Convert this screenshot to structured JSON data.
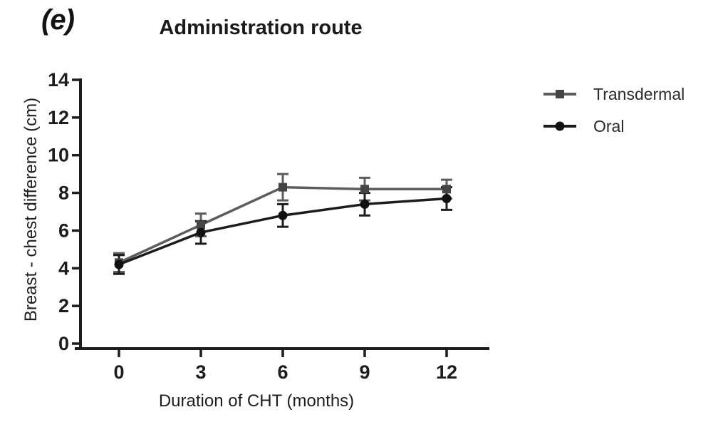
{
  "chart_data": {
    "type": "line",
    "panel_label": "(e)",
    "title": "Administration route",
    "xlabel": "Duration of CHT (months)",
    "ylabel": "Breast - chest difference (cm)",
    "x": [
      0,
      3,
      6,
      9,
      12
    ],
    "xticks": [
      0,
      3,
      6,
      9,
      12
    ],
    "yticks": [
      0,
      2,
      4,
      6,
      8,
      10,
      12,
      14
    ],
    "ylim": [
      0,
      14
    ],
    "xlim": [
      -1.6,
      13.6
    ],
    "grid": false,
    "error_bars": true,
    "legend_position": "right",
    "series": [
      {
        "name": "Transdermal",
        "marker": "square",
        "color": "#5d5d5d",
        "marker_color": "#454545",
        "values": [
          4.3,
          6.3,
          8.3,
          8.2,
          8.2
        ],
        "errors": [
          0.5,
          0.6,
          0.7,
          0.6,
          0.5
        ]
      },
      {
        "name": "Oral",
        "marker": "circle",
        "color": "#1c1c1c",
        "marker_color": "#111111",
        "values": [
          4.2,
          5.9,
          6.8,
          7.4,
          7.7
        ],
        "errors": [
          0.5,
          0.6,
          0.6,
          0.6,
          0.6
        ]
      }
    ]
  },
  "colors": {
    "axis": "#1d1d1d",
    "text": "#1e1e1e",
    "background": "#ffffff"
  }
}
